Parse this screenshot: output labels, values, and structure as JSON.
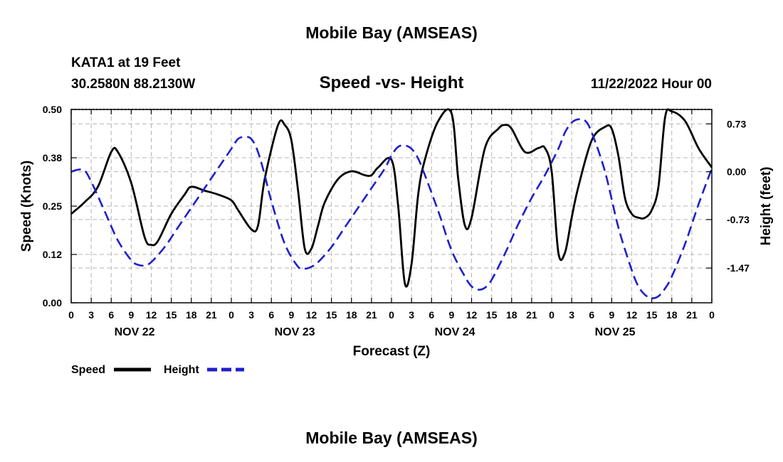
{
  "header": {
    "title": "Mobile Bay (AMSEAS)",
    "station": "KATA1 at 19 Feet",
    "coords": "30.2580N  88.2130W",
    "datetime": "11/22/2022 Hour 00",
    "footer_title": "Mobile Bay (AMSEAS)"
  },
  "chart_data": {
    "type": "line",
    "title": "Speed -vs- Height",
    "xlabel": "Forecast (Z)",
    "ylabel_left": "Speed (Knots)",
    "ylabel_right": "Height (feet)",
    "x_unit": "hours from 11/22/2022 00Z",
    "xlim": [
      0,
      96
    ],
    "ylim_left": [
      0.0,
      0.5
    ],
    "ylim_right": [
      -2.0,
      0.95
    ],
    "left_ticks": [
      "0.00",
      "0.12",
      "0.25",
      "0.38",
      "0.50"
    ],
    "left_tick_values": [
      0.0,
      0.125,
      0.25,
      0.375,
      0.5
    ],
    "right_ticks": [
      "0.73",
      "0.00",
      "-0.73",
      "-1.47"
    ],
    "right_tick_values": [
      0.73,
      0.0,
      -0.73,
      -1.47
    ],
    "x_tick_labels": [
      "0",
      "3",
      "6",
      "9",
      "12",
      "15",
      "18",
      "21",
      "0",
      "3",
      "6",
      "9",
      "12",
      "15",
      "18",
      "21",
      "0",
      "3",
      "6",
      "9",
      "12",
      "15",
      "18",
      "21",
      "0",
      "3",
      "6",
      "9",
      "12",
      "15",
      "18",
      "21",
      "0"
    ],
    "day_labels": [
      "NOV 22",
      "NOV 23",
      "NOV 24",
      "NOV 25"
    ],
    "grid": true,
    "legend_position": "bottom-left",
    "series": [
      {
        "name": "Speed",
        "axis": "left",
        "color": "#000000",
        "style": "solid",
        "x": [
          0,
          2,
          4,
          6,
          7,
          9,
          11,
          12,
          13,
          15,
          17,
          18,
          20,
          22,
          24,
          25,
          27,
          28,
          29,
          31,
          32,
          33,
          34,
          35,
          36,
          37,
          38,
          40,
          42,
          44,
          45,
          46,
          48,
          49,
          50,
          51,
          52,
          53,
          55,
          57,
          58,
          59,
          60,
          62,
          64,
          65,
          66,
          68,
          70,
          71,
          72,
          73,
          74,
          75,
          76,
          78,
          80,
          81,
          82,
          83,
          84,
          85,
          86,
          87,
          88,
          89,
          90,
          92,
          94,
          96
        ],
        "values": [
          0.23,
          0.26,
          0.3,
          0.39,
          0.39,
          0.31,
          0.17,
          0.15,
          0.16,
          0.23,
          0.28,
          0.3,
          0.29,
          0.28,
          0.265,
          0.24,
          0.19,
          0.2,
          0.32,
          0.46,
          0.46,
          0.42,
          0.29,
          0.14,
          0.14,
          0.2,
          0.26,
          0.32,
          0.34,
          0.33,
          0.33,
          0.35,
          0.37,
          0.25,
          0.05,
          0.1,
          0.28,
          0.37,
          0.47,
          0.49,
          0.32,
          0.2,
          0.22,
          0.4,
          0.45,
          0.46,
          0.45,
          0.39,
          0.4,
          0.4,
          0.34,
          0.13,
          0.13,
          0.22,
          0.3,
          0.42,
          0.455,
          0.45,
          0.38,
          0.27,
          0.23,
          0.22,
          0.22,
          0.24,
          0.3,
          0.48,
          0.495,
          0.47,
          0.4,
          0.35
        ]
      },
      {
        "name": "Height",
        "axis": "right",
        "color": "#1f1fcc",
        "style": "dashed",
        "x": [
          0,
          1,
          2,
          3,
          5,
          7,
          9,
          10,
          11,
          12,
          14,
          16,
          18,
          20,
          22,
          24,
          25,
          26,
          27,
          28,
          29,
          30,
          32,
          34,
          35,
          36,
          37,
          39,
          41,
          43,
          45,
          47,
          48,
          49,
          50,
          51,
          52,
          53,
          55,
          57,
          59,
          60,
          61,
          62,
          63,
          65,
          67,
          69,
          71,
          73,
          74,
          75,
          76,
          77,
          78,
          80,
          82,
          84,
          85,
          86,
          87,
          88,
          89,
          90,
          92,
          94,
          96
        ],
        "values": [
          0.0,
          0.03,
          0.02,
          -0.15,
          -0.6,
          -1.05,
          -1.35,
          -1.42,
          -1.43,
          -1.38,
          -1.15,
          -0.85,
          -0.55,
          -0.25,
          0.05,
          0.35,
          0.5,
          0.53,
          0.5,
          0.3,
          -0.05,
          -0.45,
          -1.1,
          -1.45,
          -1.48,
          -1.45,
          -1.38,
          -1.15,
          -0.85,
          -0.55,
          -0.25,
          0.05,
          0.25,
          0.38,
          0.4,
          0.35,
          0.2,
          -0.05,
          -0.6,
          -1.2,
          -1.6,
          -1.75,
          -1.8,
          -1.77,
          -1.65,
          -1.25,
          -0.8,
          -0.4,
          -0.05,
          0.35,
          0.6,
          0.75,
          0.8,
          0.78,
          0.6,
          0.0,
          -0.85,
          -1.5,
          -1.75,
          -1.88,
          -1.93,
          -1.9,
          -1.78,
          -1.6,
          -1.1,
          -0.5,
          0.05
        ]
      }
    ]
  }
}
